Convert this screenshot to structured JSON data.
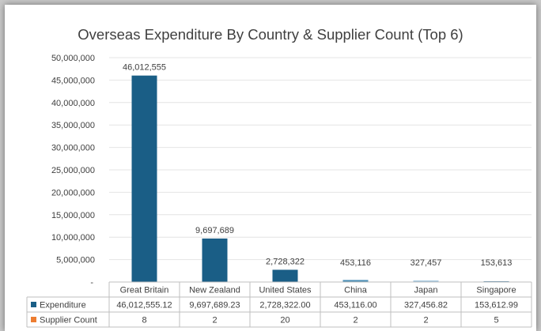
{
  "colors": {
    "expenditure": "#1a5e86",
    "supplier_count": "#ed7d31",
    "china_bar": "#4d8fb6",
    "japan_bar": "#9dc3dc"
  },
  "chart_data": {
    "type": "bar",
    "title": "Overseas Expenditure By Country & Supplier Count (Top 6)",
    "categories": [
      "Great Britain",
      "New Zealand",
      "United States",
      "China",
      "Japan",
      "Singapore"
    ],
    "ylim": [
      0,
      50000000
    ],
    "yticks": [
      "-",
      "5,000,000",
      "10,000,000",
      "15,000,000",
      "20,000,000",
      "25,000,000",
      "30,000,000",
      "35,000,000",
      "40,000,000",
      "45,000,000",
      "50,000,000"
    ],
    "grid": true,
    "legend": "data table",
    "series": [
      {
        "name": "Expenditure",
        "values": [
          46012555.12,
          9697689.23,
          2728322.0,
          453116.0,
          327456.82,
          153612.99
        ],
        "data_labels": [
          "46,012,555",
          "9,697,689",
          "2,728,322",
          "453,116",
          "327,457",
          "153,613"
        ],
        "table_values": [
          "46,012,555.12",
          "9,697,689.23",
          "2,728,322.00",
          "453,116.00",
          "327,456.82",
          "153,612.99"
        ]
      },
      {
        "name": "Supplier Count",
        "values": [
          8,
          2,
          20,
          2,
          2,
          5
        ],
        "table_values": [
          "8",
          "2",
          "20",
          "2",
          "2",
          "5"
        ]
      }
    ]
  }
}
